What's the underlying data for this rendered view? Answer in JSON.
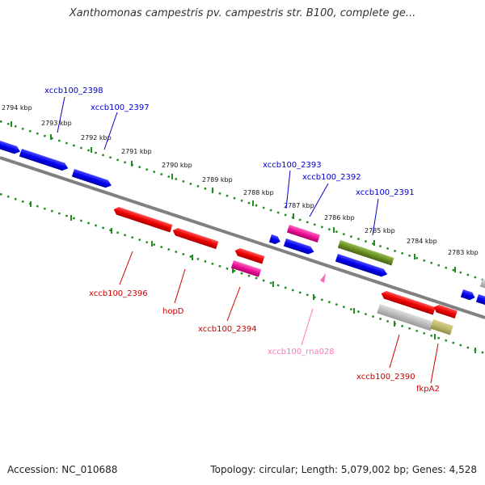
{
  "title": "Xanthomonas campestris pv. campestris str. B100, complete ge...",
  "footer": {
    "accession": "Accession: NC_010688",
    "stats": "Topology: circular; Length: 5,079,002 bp; Genes: 4,528"
  },
  "kbp_ticks": [
    "2794 kbp",
    "2793 kbp",
    "2792 kbp",
    "2791 kbp",
    "2790 kbp",
    "2789 kbp",
    "2788 kbp",
    "2787 kbp",
    "2786 kbp",
    "2785 kbp",
    "2784 kbp",
    "2783 kbp"
  ],
  "genes_top": [
    "xccb100_2398",
    "xccb100_2397",
    "xccb100_2393",
    "xccb100_2392",
    "xccb100_2391"
  ],
  "genes_bottom": [
    "xccb100_2396",
    "hopD",
    "xccb100_2394",
    "xccb100_rna028",
    "xccb100_2390",
    "fkpA2"
  ],
  "colors": {
    "forward": "#0000ee",
    "reverse": "#ee0000",
    "rna": "#ee3399",
    "other": "#6b8e23",
    "pseudo": "#aaaaaa",
    "tick": "#228b22"
  }
}
